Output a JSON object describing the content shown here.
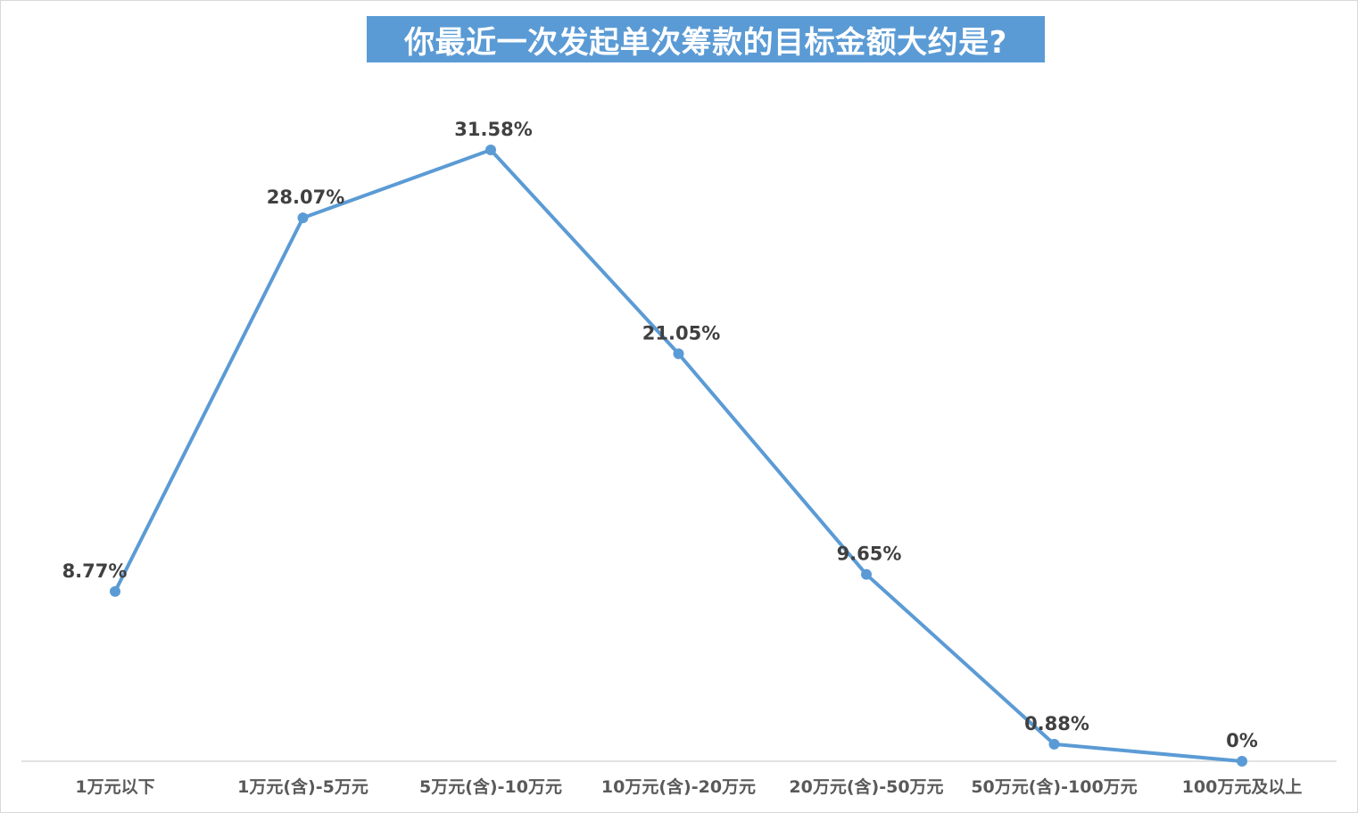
{
  "chart_data": {
    "type": "line",
    "title": "你最近一次发起单次筹款的目标金额大约是?",
    "categories": [
      "1万元以下",
      "1万元(含)-5万元",
      "5万元(含)-10万元",
      "10万元(含)-20万元",
      "20万元(含)-50万元",
      "50万元(含)-100万元",
      "100万元及以上"
    ],
    "values": [
      8.77,
      28.07,
      31.58,
      21.05,
      9.65,
      0.88,
      0
    ],
    "data_labels": [
      "8.77%",
      "28.07%",
      "31.58%",
      "21.05%",
      "9.65%",
      "0.88%",
      "0%"
    ],
    "ylim": [
      0,
      34
    ],
    "grid": false,
    "legend": "none",
    "line_color": "#5b9bd5",
    "title_bg_color": "#5b9bd5"
  }
}
